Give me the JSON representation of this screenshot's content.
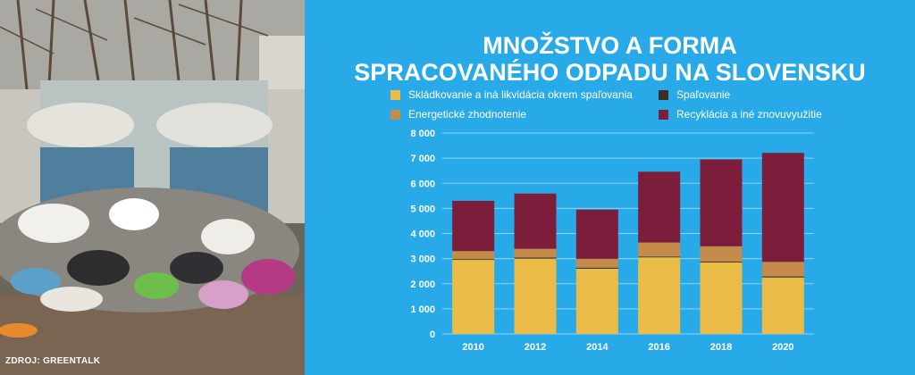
{
  "title_lines": [
    "MNOŽSTVO A FORMA",
    "SPRACOVANÉHO ODPADU NA SLOVENSKU"
  ],
  "source": "ZDROJ: GREENTALK",
  "colors": {
    "background": "#29aae8",
    "landfill": "#ebbd48",
    "incineration": "#3c2f25",
    "energy": "#c58b4b",
    "recycling": "#7c1e3b"
  },
  "legend": [
    {
      "label": "Skládkovanie a iná likvidácia okrem spaľovania",
      "color": "#ebbd48"
    },
    {
      "label": "Spaľovanie",
      "color": "#3c2f25"
    },
    {
      "label": "Energetické zhodnotenie",
      "color": "#c58b4b"
    },
    {
      "label": "Recyklácia a iné znovuvyužitie",
      "color": "#7c1e3b"
    }
  ],
  "chart_data": {
    "type": "bar",
    "stacked": true,
    "title": "MNOŽSTVO A FORMA SPRACOVANÉHO ODPADU NA SLOVENSKU",
    "categories": [
      "2010",
      "2012",
      "2014",
      "2016",
      "2018",
      "2020"
    ],
    "ylim": [
      0,
      8000
    ],
    "yticks": [
      0,
      1000,
      2000,
      3000,
      4000,
      5000,
      6000,
      7000,
      8000
    ],
    "ytick_labels": [
      "0",
      "1 000",
      "2 000",
      "3 000",
      "4 000",
      "5 000",
      "6 000",
      "7 000",
      "8 000"
    ],
    "grid": true,
    "legend_position": "top",
    "series": [
      {
        "name": "Skládkovanie a iná likvidácia okrem spaľovania",
        "color": "#ebbd48",
        "values": [
          2950,
          3000,
          2600,
          3050,
          2850,
          2250
        ]
      },
      {
        "name": "Spaľovanie",
        "color": "#3c2f25",
        "values": [
          30,
          40,
          40,
          30,
          30,
          40
        ]
      },
      {
        "name": "Energetické zhodnotenie",
        "color": "#c58b4b",
        "values": [
          320,
          350,
          350,
          560,
          610,
          580
        ]
      },
      {
        "name": "Recyklácia a iné znovuvyužitie",
        "color": "#7c1e3b",
        "values": [
          2000,
          2200,
          1960,
          2820,
          3460,
          4340
        ]
      }
    ]
  }
}
